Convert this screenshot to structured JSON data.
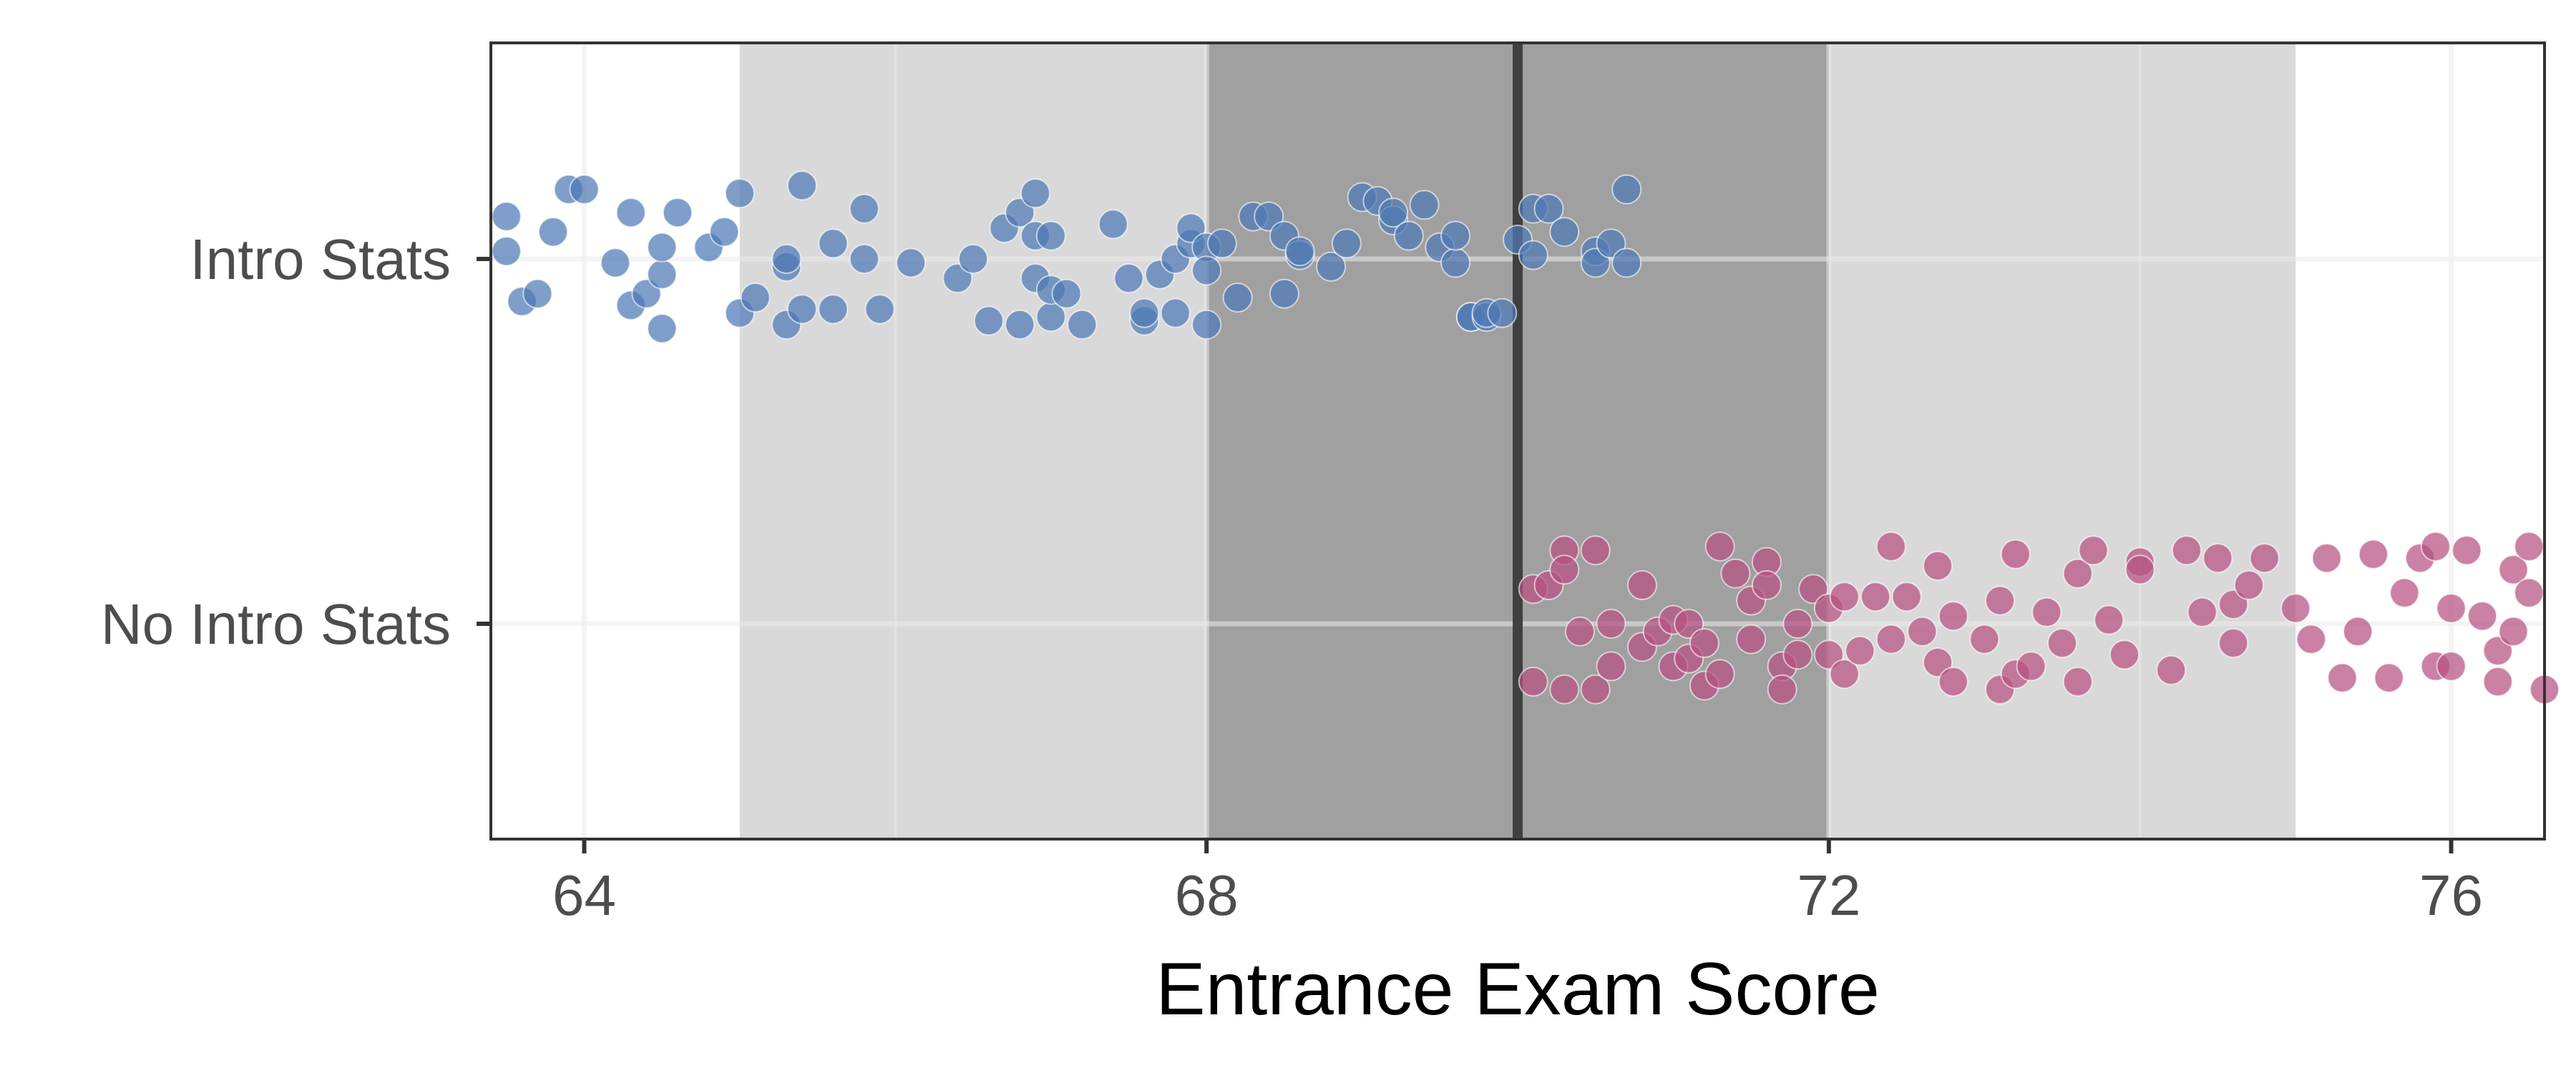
{
  "chart_data": {
    "type": "scatter",
    "title": "",
    "xlabel": "Entrance Exam Score",
    "ylabel": "",
    "xlim": [
      63.4,
      76.6
    ],
    "x_ticks": [
      64,
      68,
      72,
      76
    ],
    "x_tick_labels": [
      "64",
      "68",
      "72",
      "76"
    ],
    "categories": [
      "No Intro Stats",
      "Intro Stats"
    ],
    "grid": true,
    "legend": "none",
    "reference_line": {
      "x": 70,
      "color": "#404040"
    },
    "bands": [
      {
        "x_start": 65,
        "x_end": 75,
        "color": "#d9d9d9"
      },
      {
        "x_start": 68,
        "x_end": 72,
        "color": "#a0a0a0"
      }
    ],
    "series": [
      {
        "category": "Intro Stats",
        "color": "#4e79b4",
        "points": [
          [
            63.5,
            0.11
          ],
          [
            63.5,
            0.02
          ],
          [
            63.6,
            -0.11
          ],
          [
            63.7,
            -0.09
          ],
          [
            63.8,
            0.07
          ],
          [
            63.9,
            0.18
          ],
          [
            64.0,
            0.18
          ],
          [
            64.2,
            -0.01
          ],
          [
            64.3,
            0.12
          ],
          [
            64.3,
            -0.12
          ],
          [
            64.4,
            -0.09
          ],
          [
            64.5,
            -0.18
          ],
          [
            64.5,
            -0.04
          ],
          [
            64.5,
            0.03
          ],
          [
            64.6,
            0.12
          ],
          [
            64.8,
            0.03
          ],
          [
            64.9,
            0.07
          ],
          [
            65.0,
            -0.14
          ],
          [
            65.0,
            0.17
          ],
          [
            65.1,
            -0.1
          ],
          [
            65.3,
            -0.02
          ],
          [
            65.3,
            0.0
          ],
          [
            65.3,
            -0.17
          ],
          [
            65.4,
            0.19
          ],
          [
            65.4,
            -0.13
          ],
          [
            65.6,
            -0.13
          ],
          [
            65.6,
            0.04
          ],
          [
            65.8,
            0.13
          ],
          [
            65.8,
            0.0
          ],
          [
            65.9,
            -0.13
          ],
          [
            66.1,
            -0.01
          ],
          [
            66.4,
            -0.05
          ],
          [
            66.5,
            0.0
          ],
          [
            66.6,
            -0.16
          ],
          [
            66.8,
            -0.17
          ],
          [
            66.7,
            0.08
          ],
          [
            66.8,
            0.12
          ],
          [
            66.9,
            0.17
          ],
          [
            66.9,
            -0.05
          ],
          [
            66.9,
            0.06
          ],
          [
            67.0,
            -0.15
          ],
          [
            67.0,
            0.06
          ],
          [
            67.0,
            -0.08
          ],
          [
            67.1,
            -0.09
          ],
          [
            67.2,
            -0.17
          ],
          [
            67.4,
            0.09
          ],
          [
            67.5,
            -0.05
          ],
          [
            67.6,
            -0.16
          ],
          [
            67.6,
            -0.14
          ],
          [
            67.7,
            -0.04
          ],
          [
            67.8,
            -0.14
          ],
          [
            67.8,
            0.0
          ],
          [
            67.9,
            0.04
          ],
          [
            67.9,
            0.08
          ],
          [
            68.0,
            -0.17
          ],
          [
            68.0,
            0.03
          ],
          [
            68.0,
            -0.03
          ],
          [
            68.1,
            0.04
          ],
          [
            68.2,
            -0.1
          ],
          [
            68.3,
            0.11
          ],
          [
            68.4,
            0.11
          ],
          [
            68.5,
            0.06
          ],
          [
            68.5,
            -0.09
          ],
          [
            68.6,
            0.01
          ],
          [
            68.6,
            0.02
          ],
          [
            68.8,
            -0.02
          ],
          [
            68.9,
            0.04
          ],
          [
            69.0,
            0.16
          ],
          [
            69.1,
            0.15
          ],
          [
            69.2,
            0.1
          ],
          [
            69.2,
            0.12
          ],
          [
            69.3,
            0.06
          ],
          [
            69.4,
            0.14
          ],
          [
            69.5,
            0.03
          ],
          [
            69.6,
            -0.01
          ],
          [
            69.6,
            0.06
          ],
          [
            69.7,
            -0.15
          ],
          [
            69.7,
            -0.15
          ],
          [
            69.8,
            -0.15
          ],
          [
            69.8,
            -0.14
          ],
          [
            69.9,
            -0.14
          ],
          [
            70.0,
            0.05
          ],
          [
            70.1,
            0.13
          ],
          [
            70.1,
            0.01
          ],
          [
            70.2,
            0.13
          ],
          [
            70.3,
            0.07
          ],
          [
            70.5,
            0.02
          ],
          [
            70.5,
            -0.01
          ],
          [
            70.6,
            0.04
          ],
          [
            70.7,
            -0.01
          ],
          [
            70.7,
            0.18
          ]
        ]
      },
      {
        "category": "No Intro Stats",
        "color": "#b5507f",
        "points": [
          [
            70.1,
            -0.15
          ],
          [
            70.1,
            0.09
          ],
          [
            70.2,
            0.1
          ],
          [
            70.3,
            0.19
          ],
          [
            70.3,
            0.14
          ],
          [
            70.3,
            -0.17
          ],
          [
            70.4,
            -0.02
          ],
          [
            70.5,
            0.19
          ],
          [
            70.5,
            -0.17
          ],
          [
            70.6,
            -0.11
          ],
          [
            70.6,
            0.0
          ],
          [
            70.8,
            0.1
          ],
          [
            70.8,
            -0.06
          ],
          [
            70.9,
            -0.02
          ],
          [
            71.0,
            0.01
          ],
          [
            71.0,
            -0.11
          ],
          [
            71.1,
            -0.09
          ],
          [
            71.1,
            0.0
          ],
          [
            71.2,
            -0.05
          ],
          [
            71.2,
            -0.16
          ],
          [
            71.3,
            0.2
          ],
          [
            71.3,
            -0.13
          ],
          [
            71.4,
            0.13
          ],
          [
            71.5,
            0.06
          ],
          [
            71.5,
            -0.04
          ],
          [
            71.6,
            0.16
          ],
          [
            71.6,
            0.1
          ],
          [
            71.7,
            -0.11
          ],
          [
            71.7,
            -0.17
          ],
          [
            71.8,
            0.0
          ],
          [
            71.8,
            -0.08
          ],
          [
            71.9,
            0.09
          ],
          [
            72.0,
            0.04
          ],
          [
            72.0,
            -0.08
          ],
          [
            72.1,
            -0.13
          ],
          [
            72.1,
            0.07
          ],
          [
            72.2,
            -0.07
          ],
          [
            72.3,
            0.07
          ],
          [
            72.4,
            -0.04
          ],
          [
            72.4,
            0.2
          ],
          [
            72.5,
            0.07
          ],
          [
            72.6,
            -0.02
          ],
          [
            72.7,
            -0.1
          ],
          [
            72.7,
            0.15
          ],
          [
            72.8,
            0.02
          ],
          [
            72.8,
            -0.15
          ],
          [
            73.0,
            -0.04
          ],
          [
            73.1,
            0.06
          ],
          [
            73.1,
            -0.17
          ],
          [
            73.2,
            0.18
          ],
          [
            73.2,
            -0.13
          ],
          [
            73.3,
            -0.11
          ],
          [
            73.4,
            0.03
          ],
          [
            73.5,
            -0.05
          ],
          [
            73.6,
            0.13
          ],
          [
            73.6,
            -0.15
          ],
          [
            73.7,
            0.19
          ],
          [
            73.8,
            0.01
          ],
          [
            73.9,
            -0.08
          ],
          [
            74.0,
            0.16
          ],
          [
            74.0,
            0.14
          ],
          [
            74.2,
            -0.12
          ],
          [
            74.3,
            0.19
          ],
          [
            74.4,
            0.03
          ],
          [
            74.5,
            0.17
          ],
          [
            74.6,
            -0.05
          ],
          [
            74.6,
            0.05
          ],
          [
            74.7,
            0.1
          ],
          [
            74.8,
            0.17
          ],
          [
            75.0,
            0.04
          ],
          [
            75.1,
            -0.04
          ],
          [
            75.2,
            0.17
          ],
          [
            75.3,
            -0.14
          ],
          [
            75.4,
            -0.02
          ],
          [
            75.5,
            0.18
          ],
          [
            75.6,
            -0.14
          ],
          [
            75.7,
            0.08
          ],
          [
            75.8,
            0.17
          ],
          [
            75.9,
            -0.11
          ],
          [
            76.0,
            0.04
          ],
          [
            76.0,
            -0.11
          ],
          [
            76.1,
            0.19
          ],
          [
            76.2,
            0.02
          ],
          [
            76.3,
            -0.07
          ],
          [
            76.4,
            0.14
          ],
          [
            76.4,
            -0.02
          ],
          [
            76.5,
            0.08
          ],
          [
            76.5,
            0.2
          ],
          [
            76.6,
            -0.17
          ],
          [
            76.3,
            -0.15
          ],
          [
            75.9,
            0.2
          ]
        ]
      }
    ]
  }
}
